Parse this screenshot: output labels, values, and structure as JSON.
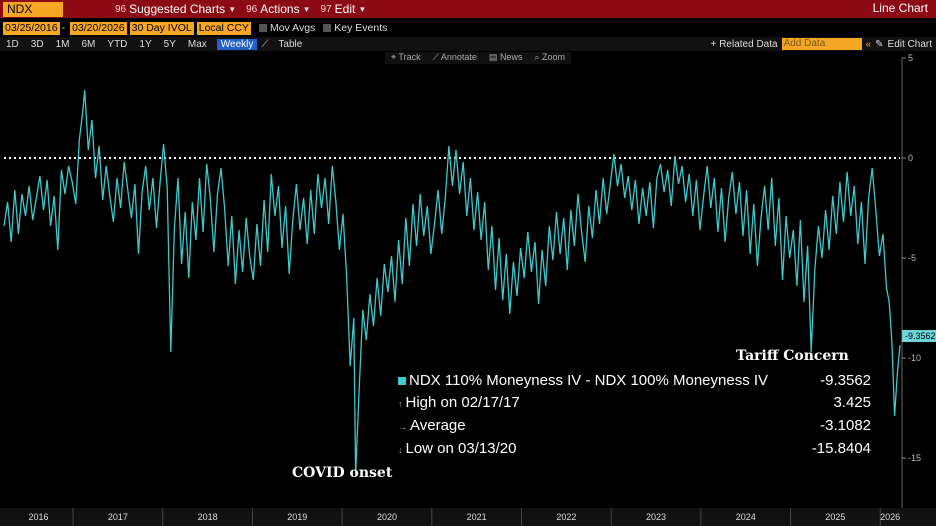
{
  "titlebar": {
    "ticker": "NDX Index",
    "menu": [
      {
        "num": "96",
        "label": "Suggested Charts"
      },
      {
        "num": "96",
        "label": "Actions"
      },
      {
        "num": "97",
        "label": "Edit"
      }
    ],
    "right_label": "Line Chart"
  },
  "controls": {
    "start_date": "03/25/2016",
    "end_date": "03/20/2026",
    "field": "30 Day IVOL",
    "currency": "Local CCY",
    "mov_avgs": "Mov Avgs",
    "key_events": "Key Events"
  },
  "range": {
    "buttons": [
      "1D",
      "3D",
      "1M",
      "6M",
      "YTD",
      "1Y",
      "5Y",
      "Max"
    ],
    "active": "Weekly",
    "table": "Table",
    "related": "+ Related Data",
    "add_data": "Add Data",
    "edit_chart": "Edit Chart"
  },
  "tools": [
    "Track",
    "Annotate",
    "News",
    "Zoom"
  ],
  "colors": {
    "line": "#3ec9cc",
    "titlebar": "#8b0a14",
    "field": "#f5a623",
    "zero_line": "#ffffff"
  },
  "chart_data": {
    "type": "line",
    "series_name": "NDX 110% Moneyness IV - NDX 100% Moneyness IV",
    "y_ticks": [
      5,
      0,
      -5,
      -10,
      -15
    ],
    "ylim": [
      -17.5,
      5
    ],
    "x_years": [
      "2016",
      "2017",
      "2018",
      "2019",
      "2020",
      "2021",
      "2022",
      "2023",
      "2024",
      "2025",
      "2026"
    ],
    "x_start": 2016.23,
    "x_end": 2026.22,
    "reference_line": 0,
    "last_value": "-9.3562",
    "points": [
      [
        2016.23,
        -3.4
      ],
      [
        2016.27,
        -2.2
      ],
      [
        2016.31,
        -4.2
      ],
      [
        2016.35,
        -1.6
      ],
      [
        2016.39,
        -3.8
      ],
      [
        2016.43,
        -1.8
      ],
      [
        2016.47,
        -2.9
      ],
      [
        2016.51,
        -1.4
      ],
      [
        2016.55,
        -3.1
      ],
      [
        2016.59,
        -2.0
      ],
      [
        2016.63,
        -0.9
      ],
      [
        2016.67,
        -2.6
      ],
      [
        2016.71,
        -1.1
      ],
      [
        2016.75,
        -3.4
      ],
      [
        2016.79,
        -1.9
      ],
      [
        2016.83,
        -4.6
      ],
      [
        2016.87,
        -0.6
      ],
      [
        2016.91,
        -1.8
      ],
      [
        2016.95,
        -0.4
      ],
      [
        2016.99,
        -1.2
      ],
      [
        2017.03,
        -2.3
      ],
      [
        2017.07,
        0.9
      ],
      [
        2017.11,
        2.4
      ],
      [
        2017.13,
        3.4
      ],
      [
        2017.17,
        0.4
      ],
      [
        2017.21,
        1.9
      ],
      [
        2017.25,
        -1.0
      ],
      [
        2017.29,
        0.6
      ],
      [
        2017.33,
        -2.1
      ],
      [
        2017.37,
        -0.4
      ],
      [
        2017.41,
        -1.9
      ],
      [
        2017.45,
        -3.2
      ],
      [
        2017.49,
        -1.0
      ],
      [
        2017.53,
        -2.5
      ],
      [
        2017.57,
        -0.2
      ],
      [
        2017.61,
        -1.6
      ],
      [
        2017.65,
        -3.0
      ],
      [
        2017.69,
        -1.3
      ],
      [
        2017.73,
        -4.8
      ],
      [
        2017.77,
        -1.7
      ],
      [
        2017.81,
        -0.4
      ],
      [
        2017.85,
        -2.6
      ],
      [
        2017.89,
        -1.0
      ],
      [
        2017.93,
        -3.5
      ],
      [
        2017.97,
        -1.2
      ],
      [
        2018.01,
        0.7
      ],
      [
        2018.05,
        -1.5
      ],
      [
        2018.09,
        -9.7
      ],
      [
        2018.13,
        -3.5
      ],
      [
        2018.17,
        -1.0
      ],
      [
        2018.21,
        -5.3
      ],
      [
        2018.25,
        -2.7
      ],
      [
        2018.29,
        -6.0
      ],
      [
        2018.33,
        -2.2
      ],
      [
        2018.37,
        -4.1
      ],
      [
        2018.41,
        -1.0
      ],
      [
        2018.45,
        -3.7
      ],
      [
        2018.49,
        -0.3
      ],
      [
        2018.53,
        -2.0
      ],
      [
        2018.57,
        -4.7
      ],
      [
        2018.61,
        -1.8
      ],
      [
        2018.65,
        -0.5
      ],
      [
        2018.69,
        -2.5
      ],
      [
        2018.73,
        -5.4
      ],
      [
        2018.77,
        -2.9
      ],
      [
        2018.81,
        -6.3
      ],
      [
        2018.85,
        -3.6
      ],
      [
        2018.89,
        -5.7
      ],
      [
        2018.93,
        -3.0
      ],
      [
        2018.97,
        -4.9
      ],
      [
        2019.01,
        -6.1
      ],
      [
        2019.05,
        -3.3
      ],
      [
        2019.09,
        -5.4
      ],
      [
        2019.13,
        -2.1
      ],
      [
        2019.17,
        -4.7
      ],
      [
        2019.21,
        -0.8
      ],
      [
        2019.25,
        -2.9
      ],
      [
        2019.29,
        -1.4
      ],
      [
        2019.33,
        -4.5
      ],
      [
        2019.37,
        -2.4
      ],
      [
        2019.41,
        -5.8
      ],
      [
        2019.45,
        -3.1
      ],
      [
        2019.49,
        -1.3
      ],
      [
        2019.53,
        -3.6
      ],
      [
        2019.57,
        -2.0
      ],
      [
        2019.61,
        -4.3
      ],
      [
        2019.65,
        -1.6
      ],
      [
        2019.69,
        -3.8
      ],
      [
        2019.73,
        -0.8
      ],
      [
        2019.77,
        -2.5
      ],
      [
        2019.81,
        -1.0
      ],
      [
        2019.85,
        -3.3
      ],
      [
        2019.89,
        -0.4
      ],
      [
        2019.93,
        -2.2
      ],
      [
        2019.97,
        -4.6
      ],
      [
        2020.01,
        -2.8
      ],
      [
        2020.05,
        -5.9
      ],
      [
        2020.09,
        -10.4
      ],
      [
        2020.13,
        -8.0
      ],
      [
        2020.15,
        -15.84
      ],
      [
        2020.19,
        -11.5
      ],
      [
        2020.23,
        -7.6
      ],
      [
        2020.27,
        -9.1
      ],
      [
        2020.31,
        -6.8
      ],
      [
        2020.35,
        -8.4
      ],
      [
        2020.39,
        -6.0
      ],
      [
        2020.43,
        -7.9
      ],
      [
        2020.47,
        -5.3
      ],
      [
        2020.51,
        -6.7
      ],
      [
        2020.55,
        -4.9
      ],
      [
        2020.59,
        -7.2
      ],
      [
        2020.63,
        -4.1
      ],
      [
        2020.67,
        -6.3
      ],
      [
        2020.71,
        -3.0
      ],
      [
        2020.75,
        -5.4
      ],
      [
        2020.79,
        -2.3
      ],
      [
        2020.83,
        -4.4
      ],
      [
        2020.87,
        -1.8
      ],
      [
        2020.91,
        -3.9
      ],
      [
        2020.95,
        -2.4
      ],
      [
        2020.99,
        -4.8
      ],
      [
        2021.03,
        -3.3
      ],
      [
        2021.07,
        -1.6
      ],
      [
        2021.11,
        -3.8
      ],
      [
        2021.15,
        -2.0
      ],
      [
        2021.19,
        0.6
      ],
      [
        2021.23,
        -1.4
      ],
      [
        2021.27,
        0.4
      ],
      [
        2021.31,
        -1.8
      ],
      [
        2021.35,
        -0.2
      ],
      [
        2021.39,
        -2.9
      ],
      [
        2021.43,
        -1.0
      ],
      [
        2021.47,
        -3.6
      ],
      [
        2021.51,
        -1.7
      ],
      [
        2021.55,
        -4.1
      ],
      [
        2021.59,
        -2.2
      ],
      [
        2021.63,
        -5.6
      ],
      [
        2021.67,
        -3.4
      ],
      [
        2021.71,
        -6.6
      ],
      [
        2021.75,
        -4.0
      ],
      [
        2021.79,
        -7.1
      ],
      [
        2021.83,
        -4.8
      ],
      [
        2021.87,
        -7.8
      ],
      [
        2021.91,
        -5.2
      ],
      [
        2021.95,
        -6.9
      ],
      [
        2021.99,
        -4.5
      ],
      [
        2022.03,
        -6.0
      ],
      [
        2022.07,
        -3.7
      ],
      [
        2022.11,
        -5.7
      ],
      [
        2022.15,
        -4.2
      ],
      [
        2022.19,
        -7.3
      ],
      [
        2022.23,
        -4.6
      ],
      [
        2022.27,
        -6.4
      ],
      [
        2022.31,
        -3.4
      ],
      [
        2022.35,
        -5.1
      ],
      [
        2022.39,
        -2.7
      ],
      [
        2022.43,
        -4.8
      ],
      [
        2022.47,
        -3.0
      ],
      [
        2022.51,
        -5.6
      ],
      [
        2022.55,
        -2.6
      ],
      [
        2022.59,
        -4.4
      ],
      [
        2022.63,
        -1.8
      ],
      [
        2022.67,
        -3.7
      ],
      [
        2022.71,
        -5.2
      ],
      [
        2022.75,
        -2.4
      ],
      [
        2022.79,
        -4.0
      ],
      [
        2022.83,
        -1.6
      ],
      [
        2022.87,
        -3.3
      ],
      [
        2022.91,
        -1.0
      ],
      [
        2022.95,
        -2.8
      ],
      [
        2022.99,
        -1.3
      ],
      [
        2023.03,
        0.2
      ],
      [
        2023.07,
        -1.4
      ],
      [
        2023.11,
        -0.3
      ],
      [
        2023.15,
        -2.0
      ],
      [
        2023.19,
        -0.9
      ],
      [
        2023.23,
        -2.6
      ],
      [
        2023.27,
        -1.1
      ],
      [
        2023.31,
        -3.3
      ],
      [
        2023.35,
        -1.5
      ],
      [
        2023.39,
        -2.9
      ],
      [
        2023.43,
        -1.2
      ],
      [
        2023.47,
        -3.5
      ],
      [
        2023.51,
        -1.0
      ],
      [
        2023.55,
        -0.3
      ],
      [
        2023.59,
        -1.7
      ],
      [
        2023.63,
        -0.6
      ],
      [
        2023.67,
        -2.4
      ],
      [
        2023.71,
        0.1
      ],
      [
        2023.75,
        -1.3
      ],
      [
        2023.79,
        -0.4
      ],
      [
        2023.83,
        -2.2
      ],
      [
        2023.87,
        -0.8
      ],
      [
        2023.91,
        -2.9
      ],
      [
        2023.95,
        -1.1
      ],
      [
        2023.99,
        -3.6
      ],
      [
        2024.03,
        -1.9
      ],
      [
        2024.07,
        -0.4
      ],
      [
        2024.11,
        -2.5
      ],
      [
        2024.15,
        -1.0
      ],
      [
        2024.19,
        -3.7
      ],
      [
        2024.23,
        -1.5
      ],
      [
        2024.27,
        -4.2
      ],
      [
        2024.31,
        -2.0
      ],
      [
        2024.35,
        -0.7
      ],
      [
        2024.39,
        -2.8
      ],
      [
        2024.43,
        -1.2
      ],
      [
        2024.47,
        -3.9
      ],
      [
        2024.51,
        -1.6
      ],
      [
        2024.55,
        -4.8
      ],
      [
        2024.59,
        -2.3
      ],
      [
        2024.63,
        -5.4
      ],
      [
        2024.67,
        -3.0
      ],
      [
        2024.71,
        -1.4
      ],
      [
        2024.75,
        -3.6
      ],
      [
        2024.79,
        -1.0
      ],
      [
        2024.83,
        -4.4
      ],
      [
        2024.87,
        -2.0
      ],
      [
        2024.91,
        -6.1
      ],
      [
        2024.95,
        -2.9
      ],
      [
        2024.99,
        -5.0
      ],
      [
        2025.03,
        -3.6
      ],
      [
        2025.07,
        -6.4
      ],
      [
        2025.11,
        -3.1
      ],
      [
        2025.15,
        -7.2
      ],
      [
        2025.19,
        -4.4
      ],
      [
        2025.23,
        -9.7
      ],
      [
        2025.27,
        -5.6
      ],
      [
        2025.31,
        -3.4
      ],
      [
        2025.35,
        -5.0
      ],
      [
        2025.39,
        -2.6
      ],
      [
        2025.43,
        -4.6
      ],
      [
        2025.47,
        -1.9
      ],
      [
        2025.51,
        -3.8
      ],
      [
        2025.55,
        -1.2
      ],
      [
        2025.59,
        -3.2
      ],
      [
        2025.63,
        -0.7
      ],
      [
        2025.67,
        -2.9
      ],
      [
        2025.71,
        -1.4
      ],
      [
        2025.75,
        -4.3
      ],
      [
        2025.79,
        -2.2
      ],
      [
        2025.83,
        -5.3
      ],
      [
        2025.87,
        -2.0
      ],
      [
        2025.91,
        -0.5
      ],
      [
        2025.95,
        -2.6
      ],
      [
        2025.99,
        -4.9
      ],
      [
        2026.03,
        -3.8
      ],
      [
        2026.07,
        -6.5
      ],
      [
        2026.1,
        -7.2
      ],
      [
        2026.13,
        -9.2
      ],
      [
        2026.16,
        -12.9
      ],
      [
        2026.19,
        -10.8
      ],
      [
        2026.22,
        -9.36
      ]
    ]
  },
  "legend": {
    "series": "NDX 110% Moneyness IV - NDX 100% Moneyness IV",
    "series_value": "-9.3562",
    "high_label": "High on 02/17/17",
    "high_value": "3.425",
    "avg_label": "Average",
    "avg_value": "-3.1082",
    "low_label": "Low on 03/13/20",
    "low_value": "-15.8404"
  },
  "annotations": {
    "covid": "COVID onset",
    "tariff": "Tariff Concern"
  }
}
